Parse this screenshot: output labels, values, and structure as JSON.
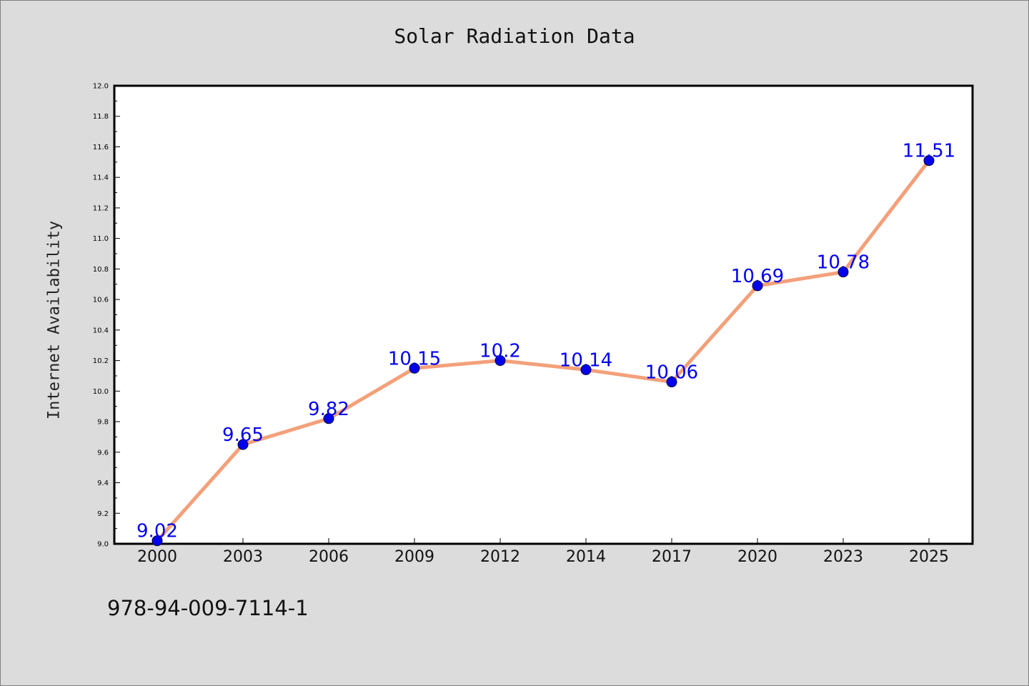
{
  "chart_data": {
    "type": "line",
    "title": "Solar Radiation Data",
    "xlabel": "",
    "ylabel": "Internet Availability",
    "categories": [
      "2000",
      "2003",
      "2006",
      "2009",
      "2012",
      "2014",
      "2017",
      "2020",
      "2023",
      "2025"
    ],
    "series": [
      {
        "values": [
          9.02,
          9.65,
          9.82,
          10.15,
          10.2,
          10.14,
          10.06,
          10.69,
          10.78,
          11.51
        ]
      }
    ],
    "data_labels": [
      "9.02",
      "9.65",
      "9.82",
      "10.15",
      "10.2",
      "10.14",
      "10.06",
      "10.69",
      "10.78",
      "11.51"
    ],
    "ylim": [
      9.0,
      12.0
    ],
    "yticks": [
      "9.0",
      "9.2",
      "9.4",
      "9.6",
      "9.8",
      "10.0",
      "10.2",
      "10.4",
      "10.6",
      "10.8",
      "11.0",
      "11.2",
      "11.4",
      "11.6",
      "11.8",
      "12.0"
    ],
    "grid": false,
    "colors": {
      "line": "#f4a07a",
      "marker": "#0000ee",
      "label": "#0000ee",
      "background": "#dcdcdc",
      "plot_bg": "#ffffff"
    }
  },
  "footer": {
    "isbn": "978-94-009-7114-1"
  }
}
